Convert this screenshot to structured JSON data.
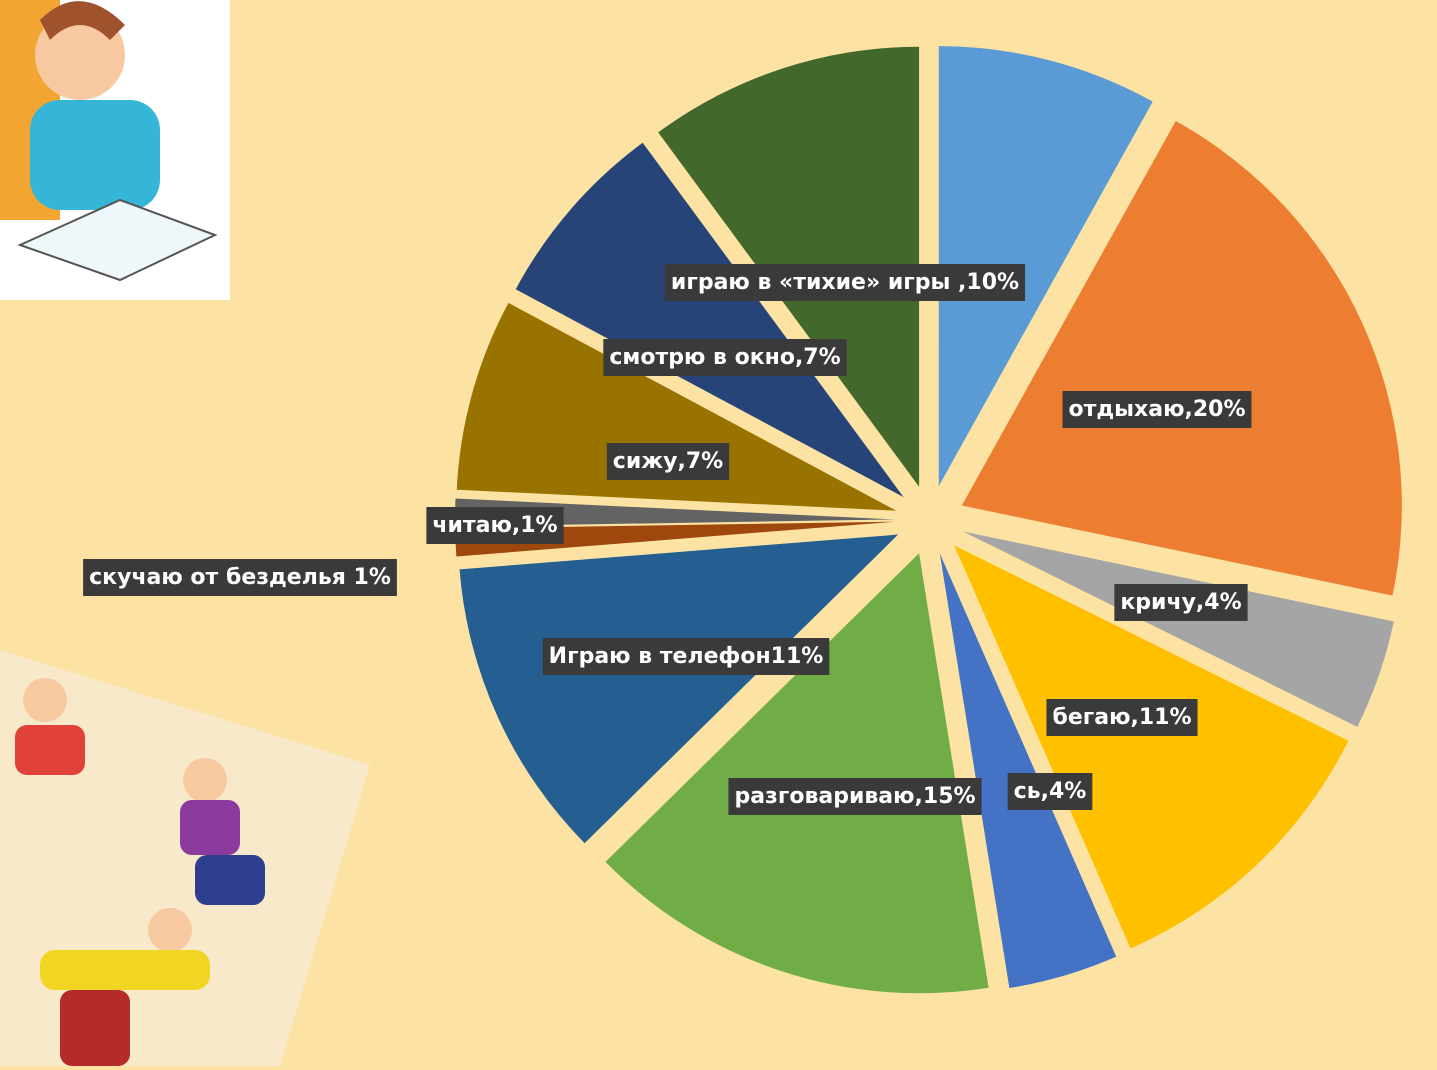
{
  "chart_data": {
    "type": "pie",
    "values": [
      8,
      20,
      4,
      11,
      4,
      15,
      11,
      1,
      1,
      7,
      7,
      10
    ],
    "value_labels": [
      null,
      "отдыхаю,20%",
      "кричу,4%",
      "бегаю,11%",
      "сь,4%",
      "разговариваю,15%",
      "Играю в телефон11%",
      "скучаю от безделья 1%",
      "читаю,1%",
      "сижу,7%",
      "смотрю в окно,7%",
      "играю в «тихие» игры ,10%"
    ],
    "colors": [
      "#5b9bd5",
      "#ed7d31",
      "#a5a5a5",
      "#ffc000",
      "#4472c4",
      "#70ad47",
      "#255e91",
      "#9e480e",
      "#636363",
      "#997300",
      "#264478",
      "#43682b"
    ]
  }
}
